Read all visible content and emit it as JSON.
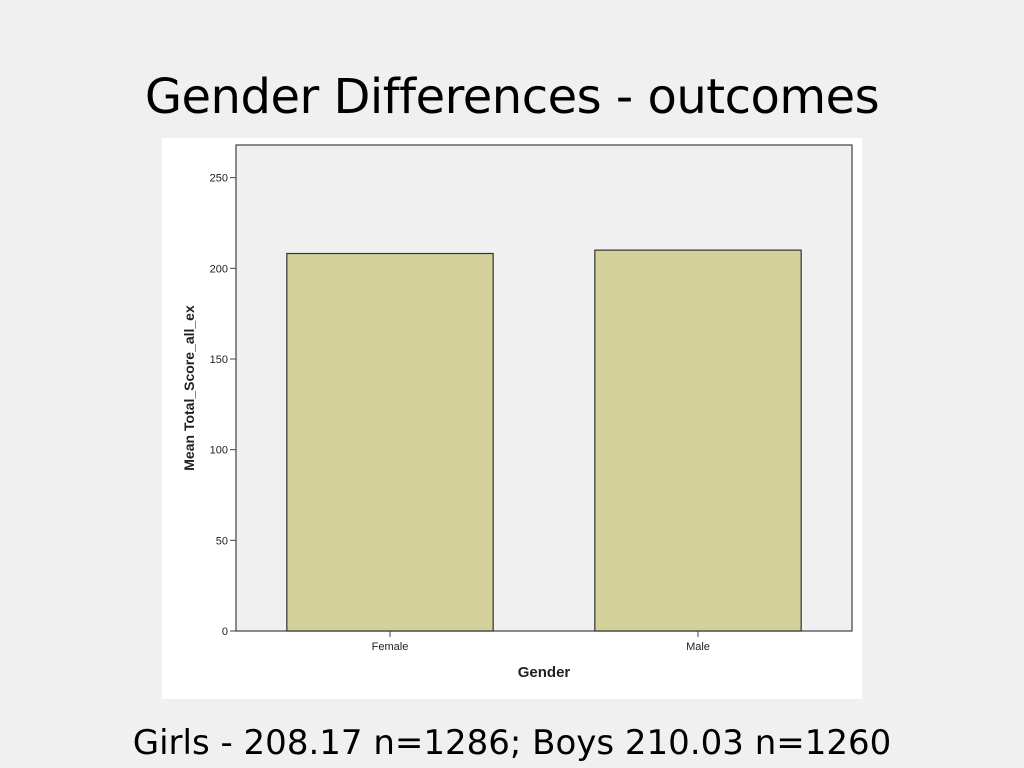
{
  "slide": {
    "title": "Gender Differences - outcomes",
    "caption": "Girls - 208.17 n=1286; Boys 210.03 n=1260"
  },
  "chart_data": {
    "type": "bar",
    "categories": [
      "Female",
      "Male"
    ],
    "values": [
      208.17,
      210.03
    ],
    "xlabel": "Gender",
    "ylabel": "Mean Total_Score_all_ex",
    "ylim": [
      0,
      268
    ],
    "yticks": [
      0,
      50,
      100,
      150,
      200,
      250
    ],
    "grid": false,
    "bar_color": "#d3d09a",
    "plot_background": "#f0f0f0"
  }
}
